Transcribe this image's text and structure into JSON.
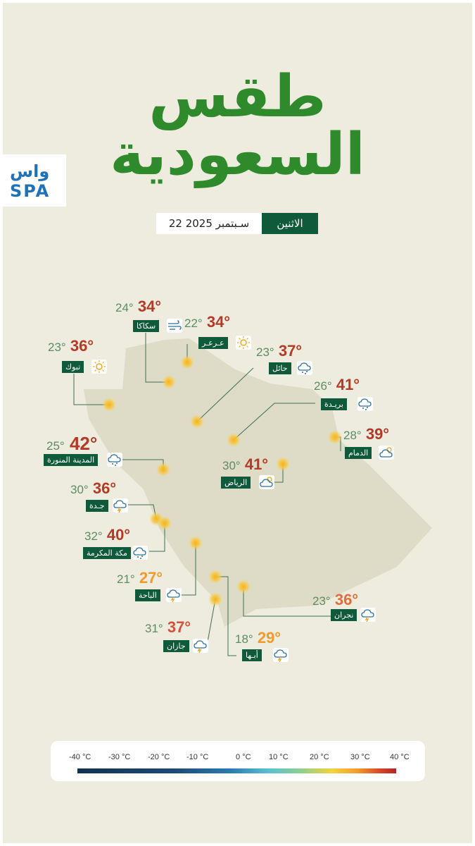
{
  "title": {
    "line1": "طقس",
    "line2": "السعودية"
  },
  "logo": {
    "arabic_mark": "واس",
    "latin": "SPA"
  },
  "date": {
    "day": "الاثنين",
    "date_text": "22 سـبتمبر 2025"
  },
  "cities": [
    {
      "id": "sakaka",
      "name": "سكاكا",
      "low": "24°",
      "high": "34°",
      "high_color": "#b33a26",
      "icon": "wind-icon"
    },
    {
      "id": "arar",
      "name": "عـرعـر",
      "low": "22°",
      "high": "34°",
      "high_color": "#b33a26",
      "icon": "sun-icon"
    },
    {
      "id": "tabuk",
      "name": "تبوك",
      "low": "23°",
      "high": "36°",
      "high_color": "#b33a26",
      "icon": "sun-icon"
    },
    {
      "id": "hail",
      "name": "حائل",
      "low": "23°",
      "high": "37°",
      "high_color": "#b33a26",
      "icon": "rain-cloud-icon"
    },
    {
      "id": "buraidah",
      "name": "بريـدة",
      "low": "26°",
      "high": "41°",
      "high_color": "#b33a26",
      "icon": "rain-cloud-icon"
    },
    {
      "id": "dammam",
      "name": "الدمام",
      "low": "28°",
      "high": "39°",
      "high_color": "#b33a26",
      "icon": "sun-cloud-icon"
    },
    {
      "id": "madinah",
      "name": "المدينة المنورة",
      "low": "25°",
      "high": "42°",
      "high_color": "#b33a26",
      "icon": "rain-cloud-icon"
    },
    {
      "id": "riyadh",
      "name": "الرياض",
      "low": "30°",
      "high": "41°",
      "high_color": "#b33a26",
      "icon": "sun-cloud-icon"
    },
    {
      "id": "jeddah",
      "name": "جـدة",
      "low": "30°",
      "high": "36°",
      "high_color": "#b33a26",
      "icon": "thunder-cloud-icon"
    },
    {
      "id": "makkah",
      "name": "مكة المكرمة",
      "low": "32°",
      "high": "40°",
      "high_color": "#b33a26",
      "icon": "rain-cloud-icon"
    },
    {
      "id": "baha",
      "name": "الباحة",
      "low": "21°",
      "high": "27°",
      "high_color": "#ef9a2b",
      "icon": "thunder-cloud-icon"
    },
    {
      "id": "najran",
      "name": "نجران",
      "low": "23°",
      "high": "36°",
      "high_color": "#e06e3a",
      "icon": "thunder-cloud-icon"
    },
    {
      "id": "jazan",
      "name": "جازان",
      "low": "31°",
      "high": "37°",
      "high_color": "#d4513a",
      "icon": "thunder-cloud-icon"
    },
    {
      "id": "abha",
      "name": "أبـها",
      "low": "18°",
      "high": "29°",
      "high_color": "#ef9a2b",
      "icon": "thunder-cloud-icon"
    }
  ],
  "legend": {
    "ticks": [
      "-40 °C",
      "-30 °C",
      "-20 °C",
      "-10 °C",
      "0 °C",
      "10 °C",
      "20 °C",
      "30 °C",
      "40 °C"
    ],
    "colors": [
      "#123252",
      "#2d7ab2",
      "#5cc0cf",
      "#8dd08f",
      "#f4d33a",
      "#f39a2c",
      "#d8442a",
      "#b42424"
    ]
  },
  "colors": {
    "brand_green": "#2f8a2c",
    "label_green": "#0f5a3a",
    "background": "#eeebdf"
  }
}
